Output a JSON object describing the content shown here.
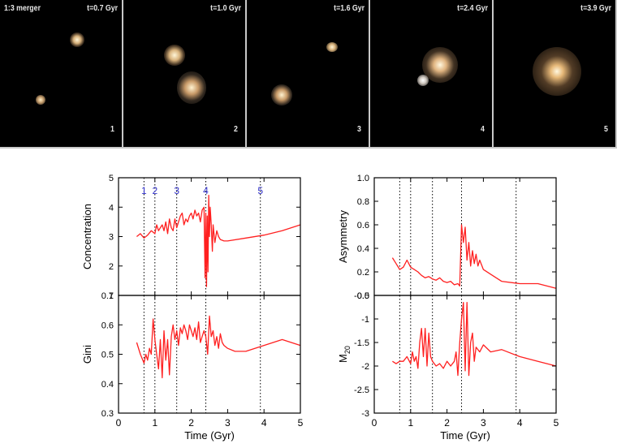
{
  "panels": [
    {
      "caption": "1:3 merger",
      "time": "t=0.7 Gyr",
      "number": "1"
    },
    {
      "caption": "",
      "time": "t=1.0 Gyr",
      "number": "2"
    },
    {
      "caption": "",
      "time": "t=1.6 Gyr",
      "number": "3"
    },
    {
      "caption": "",
      "time": "t=2.4 Gyr",
      "number": "4"
    },
    {
      "caption": "",
      "time": "t=3.9 Gyr",
      "number": "5"
    }
  ],
  "colors": {
    "curve": "#ff2020",
    "markers": "#3333cc",
    "axes": "#000000"
  },
  "chart_data": [
    {
      "type": "line",
      "ylabel": "Concentration",
      "xlabel": "",
      "xlim": [
        0,
        5
      ],
      "ylim": [
        1,
        5
      ],
      "yticks": [
        1,
        2,
        3,
        4,
        5
      ],
      "xticklabels": false,
      "vlines": [
        0.7,
        1.0,
        1.6,
        2.4,
        3.9
      ],
      "markers": [
        {
          "label": "1",
          "x": 0.7
        },
        {
          "label": "2",
          "x": 1.0
        },
        {
          "label": "3",
          "x": 1.6
        },
        {
          "label": "4",
          "x": 2.4
        },
        {
          "label": "5",
          "x": 3.9
        }
      ],
      "x": [
        0.5,
        0.6,
        0.7,
        0.8,
        0.9,
        1.0,
        1.05,
        1.1,
        1.15,
        1.2,
        1.25,
        1.3,
        1.35,
        1.4,
        1.45,
        1.5,
        1.55,
        1.6,
        1.65,
        1.7,
        1.75,
        1.8,
        1.85,
        1.9,
        1.95,
        2.0,
        2.05,
        2.1,
        2.15,
        2.2,
        2.25,
        2.3,
        2.35,
        2.38,
        2.4,
        2.42,
        2.44,
        2.46,
        2.48,
        2.5,
        2.52,
        2.55,
        2.58,
        2.6,
        2.65,
        2.7,
        2.75,
        2.8,
        2.9,
        3.0,
        3.5,
        4.0,
        4.5,
        5.0
      ],
      "y": [
        3.0,
        3.1,
        2.95,
        3.05,
        3.2,
        3.1,
        3.4,
        3.2,
        3.3,
        3.4,
        3.2,
        3.5,
        3.1,
        3.6,
        3.3,
        3.2,
        3.6,
        3.3,
        3.5,
        3.7,
        3.8,
        3.4,
        3.6,
        3.5,
        3.7,
        3.8,
        3.6,
        3.9,
        3.7,
        3.8,
        3.5,
        3.9,
        4.0,
        1.6,
        3.8,
        1.3,
        3.7,
        1.8,
        4.4,
        3.0,
        4.0,
        3.4,
        2.5,
        3.4,
        2.8,
        3.2,
        3.0,
        2.9,
        2.85,
        2.85,
        2.95,
        3.05,
        3.2,
        3.4
      ]
    },
    {
      "type": "line",
      "ylabel": "Gini",
      "xlabel": "Time (Gyr)",
      "xlim": [
        0,
        5
      ],
      "ylim": [
        0.3,
        0.7
      ],
      "yticks": [
        0.3,
        0.4,
        0.5,
        0.6,
        0.7
      ],
      "xticks": [
        0,
        1,
        2,
        3,
        4,
        5
      ],
      "vlines": [
        0.7,
        1.0,
        1.6,
        2.4,
        3.9
      ],
      "x": [
        0.5,
        0.6,
        0.7,
        0.75,
        0.8,
        0.85,
        0.9,
        0.95,
        1.0,
        1.05,
        1.1,
        1.15,
        1.2,
        1.25,
        1.3,
        1.35,
        1.4,
        1.45,
        1.5,
        1.55,
        1.6,
        1.65,
        1.7,
        1.75,
        1.8,
        1.85,
        1.9,
        1.95,
        2.0,
        2.05,
        2.1,
        2.15,
        2.2,
        2.25,
        2.3,
        2.35,
        2.4,
        2.45,
        2.5,
        2.55,
        2.6,
        2.65,
        2.7,
        2.75,
        2.8,
        2.85,
        2.9,
        3.0,
        3.2,
        3.5,
        4.0,
        4.5,
        5.0
      ],
      "y": [
        0.54,
        0.5,
        0.47,
        0.5,
        0.48,
        0.52,
        0.5,
        0.62,
        0.55,
        0.5,
        0.45,
        0.55,
        0.42,
        0.58,
        0.48,
        0.55,
        0.43,
        0.56,
        0.6,
        0.55,
        0.58,
        0.53,
        0.59,
        0.57,
        0.6,
        0.58,
        0.55,
        0.6,
        0.58,
        0.56,
        0.59,
        0.55,
        0.61,
        0.54,
        0.56,
        0.58,
        0.56,
        0.5,
        0.63,
        0.56,
        0.58,
        0.53,
        0.56,
        0.52,
        0.57,
        0.54,
        0.53,
        0.52,
        0.51,
        0.51,
        0.53,
        0.55,
        0.53
      ]
    },
    {
      "type": "line",
      "ylabel": "Asymmetry",
      "xlabel": "",
      "xlim": [
        0,
        5
      ],
      "ylim": [
        0.0,
        1.0
      ],
      "yticks": [
        0.0,
        0.2,
        0.4,
        0.6,
        0.8,
        1.0
      ],
      "xticklabels": false,
      "vlines": [
        0.7,
        1.0,
        1.6,
        2.4,
        3.9
      ],
      "x": [
        0.5,
        0.6,
        0.7,
        0.8,
        0.9,
        1.0,
        1.1,
        1.2,
        1.3,
        1.4,
        1.5,
        1.6,
        1.7,
        1.8,
        1.9,
        2.0,
        2.1,
        2.2,
        2.3,
        2.35,
        2.4,
        2.45,
        2.5,
        2.55,
        2.6,
        2.65,
        2.7,
        2.75,
        2.8,
        2.85,
        2.9,
        3.0,
        3.2,
        3.5,
        4.0,
        4.5,
        5.0
      ],
      "y": [
        0.32,
        0.27,
        0.22,
        0.24,
        0.3,
        0.24,
        0.22,
        0.2,
        0.17,
        0.15,
        0.16,
        0.14,
        0.13,
        0.15,
        0.12,
        0.11,
        0.12,
        0.09,
        0.1,
        0.08,
        0.6,
        0.45,
        0.58,
        0.3,
        0.45,
        0.25,
        0.38,
        0.27,
        0.35,
        0.25,
        0.3,
        0.22,
        0.18,
        0.12,
        0.1,
        0.1,
        0.06
      ]
    },
    {
      "type": "line",
      "ylabel": "M20",
      "ylabel_main": "M",
      "ylabel_sub": "20",
      "xlabel": "Time (Gyr)",
      "xlim": [
        0,
        5
      ],
      "ylim": [
        -3.0,
        -0.5
      ],
      "yticks": [
        -3.0,
        -2.5,
        -2.0,
        -1.5,
        -1.0,
        -0.5
      ],
      "xticks": [
        0,
        1,
        2,
        3,
        4,
        5
      ],
      "vlines": [
        0.7,
        1.0,
        1.6,
        2.4,
        3.9
      ],
      "x": [
        0.5,
        0.6,
        0.7,
        0.8,
        0.9,
        1.0,
        1.05,
        1.1,
        1.15,
        1.2,
        1.25,
        1.3,
        1.35,
        1.4,
        1.45,
        1.5,
        1.55,
        1.6,
        1.7,
        1.8,
        1.9,
        2.0,
        2.1,
        2.2,
        2.25,
        2.3,
        2.35,
        2.4,
        2.45,
        2.5,
        2.55,
        2.6,
        2.65,
        2.7,
        2.75,
        2.8,
        2.9,
        3.0,
        3.2,
        3.5,
        4.0,
        4.5,
        5.0
      ],
      "y": [
        -1.9,
        -1.95,
        -1.9,
        -1.9,
        -1.8,
        -1.95,
        -1.7,
        -1.9,
        -1.8,
        -2.05,
        -1.5,
        -1.2,
        -1.8,
        -1.2,
        -2.0,
        -1.3,
        -1.8,
        -1.9,
        -2.0,
        -1.95,
        -2.05,
        -1.9,
        -2.0,
        -1.9,
        -1.7,
        -2.2,
        -1.5,
        -1.0,
        -0.65,
        -2.1,
        -0.65,
        -2.2,
        -1.5,
        -1.3,
        -1.9,
        -1.6,
        -1.7,
        -1.55,
        -1.7,
        -1.65,
        -1.8,
        -1.9,
        -2.0
      ]
    }
  ]
}
